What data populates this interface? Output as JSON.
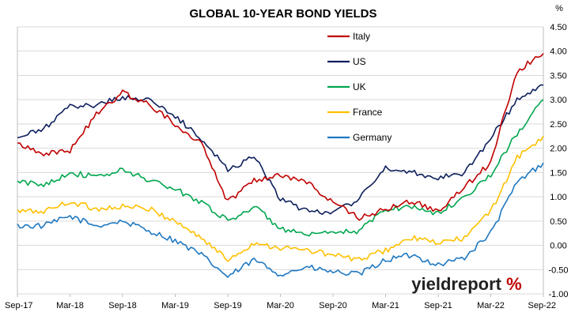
{
  "chart_data": {
    "type": "line",
    "title": "GLOBAL 10-YEAR BOND YIELDS",
    "ylabel": "%",
    "xlabel": "",
    "ylim": [
      -1.0,
      4.5
    ],
    "yticks": [
      "4.50",
      "4.00",
      "3.50",
      "3.00",
      "2.50",
      "2.00",
      "1.50",
      "1.00",
      "0.50",
      "0.00",
      "-0.50",
      "-1.00"
    ],
    "ytick_values": [
      4.5,
      4.0,
      3.5,
      3.0,
      2.5,
      2.0,
      1.5,
      1.0,
      0.5,
      0.0,
      -0.5,
      -1.0
    ],
    "x": [
      "Sep-17",
      "Dec-17",
      "Mar-18",
      "Jun-18",
      "Sep-18",
      "Dec-18",
      "Mar-19",
      "Jun-19",
      "Sep-19",
      "Dec-19",
      "Mar-20",
      "Jun-20",
      "Sep-20",
      "Dec-20",
      "Mar-21",
      "Jun-21",
      "Sep-21",
      "Dec-21",
      "Mar-22",
      "Jun-22",
      "Sep-22"
    ],
    "xtick_labels": [
      "Sep-17",
      "Mar-18",
      "Sep-18",
      "Mar-19",
      "Sep-19",
      "Mar-20",
      "Sep-20",
      "Mar-21",
      "Sep-21",
      "Mar-22",
      "Sep-22"
    ],
    "grid": true,
    "legend_position": "top-center",
    "series": [
      {
        "name": "Italy",
        "color": "#c00000",
        "values": [
          2.1,
          1.9,
          1.95,
          2.7,
          3.15,
          2.9,
          2.5,
          2.1,
          0.9,
          1.35,
          1.45,
          1.3,
          0.9,
          0.55,
          0.75,
          0.9,
          0.7,
          1.2,
          1.7,
          3.6,
          3.95
        ]
      },
      {
        "name": "US",
        "color": "#0d1f5c",
        "values": [
          2.2,
          2.4,
          2.85,
          2.9,
          3.05,
          3.0,
          2.65,
          2.2,
          1.55,
          1.85,
          0.95,
          0.7,
          0.7,
          0.95,
          1.6,
          1.5,
          1.4,
          1.5,
          2.2,
          3.0,
          3.3
        ]
      },
      {
        "name": "UK",
        "color": "#00a64f",
        "values": [
          1.3,
          1.25,
          1.5,
          1.4,
          1.55,
          1.35,
          1.15,
          0.9,
          0.5,
          0.8,
          0.35,
          0.2,
          0.25,
          0.3,
          0.75,
          0.8,
          0.65,
          1.0,
          1.45,
          2.3,
          3.0
        ]
      },
      {
        "name": "France",
        "color": "#ffc000",
        "values": [
          0.7,
          0.7,
          0.9,
          0.75,
          0.8,
          0.75,
          0.5,
          0.15,
          -0.3,
          0.05,
          -0.05,
          -0.1,
          -0.2,
          -0.3,
          -0.1,
          0.15,
          0.05,
          0.15,
          0.7,
          1.8,
          2.25
        ]
      },
      {
        "name": "Germany",
        "color": "#1f78c1",
        "values": [
          0.4,
          0.4,
          0.6,
          0.4,
          0.5,
          0.3,
          0.1,
          -0.2,
          -0.65,
          -0.3,
          -0.6,
          -0.45,
          -0.55,
          -0.6,
          -0.3,
          -0.2,
          -0.4,
          -0.25,
          0.25,
          1.3,
          1.7
        ]
      }
    ]
  },
  "watermark": {
    "brand_dark": "yieldreport",
    "percent": "%",
    "color_dark": "#222222",
    "color_accent": "#c00000"
  }
}
